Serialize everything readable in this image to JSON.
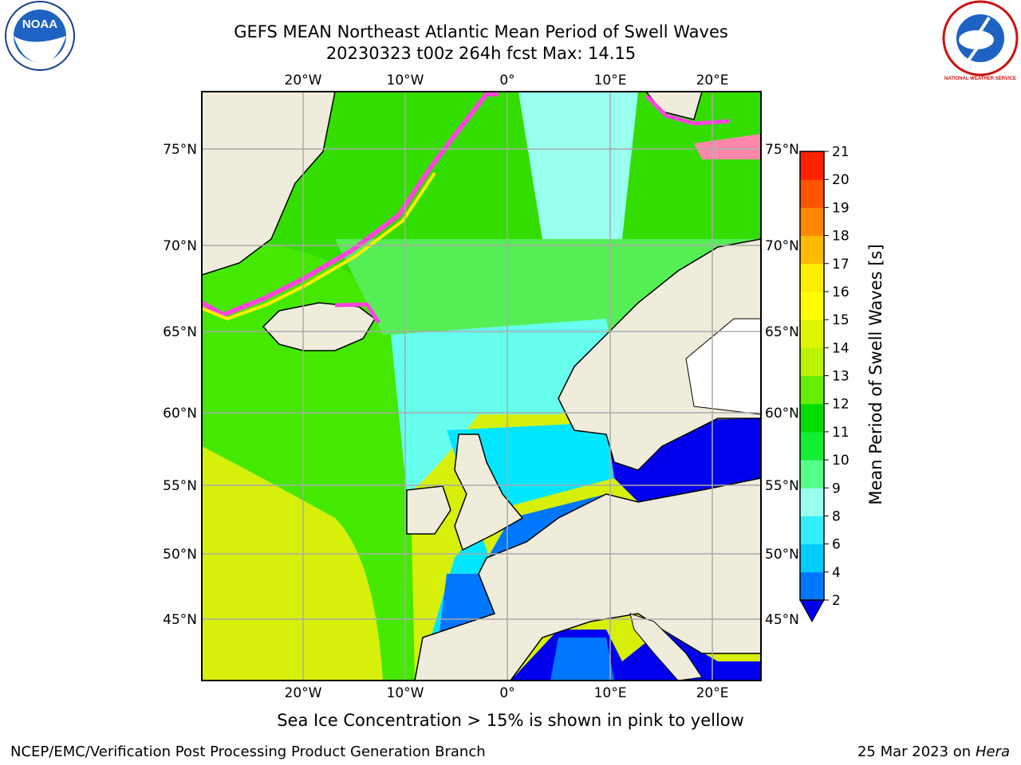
{
  "title": {
    "line1": "GEFS MEAN Northeast Atlantic Mean Period of Swell Waves",
    "line2": "20230323 t00z 264h fcst   Max: 14.15"
  },
  "map": {
    "lon_labels": [
      "20°W",
      "10°W",
      "0°",
      "10°E",
      "20°E"
    ],
    "lat_labels": [
      "75°N",
      "70°N",
      "65°N",
      "60°N",
      "55°N",
      "50°N",
      "45°N"
    ],
    "colors": {
      "land": "#efecdc",
      "ocean_long": "#d6f00a",
      "ocean_mid": "#33dd00",
      "ocean_short": "#00e6ff",
      "ice_pink": "#ff44dd",
      "ice_yellow": "#ffee00"
    }
  },
  "colorbar": {
    "title": "Mean Period of Swell Waves [s]",
    "ticks": [
      "2",
      "4",
      "6",
      "8",
      "9",
      "10",
      "11",
      "12",
      "13",
      "14",
      "15",
      "16",
      "17",
      "18",
      "19",
      "20",
      "21"
    ],
    "colors": [
      "#0000ee",
      "#0077ff",
      "#00ccff",
      "#33eeff",
      "#99ffee",
      "#55ff88",
      "#11ee33",
      "#00dd00",
      "#66ee00",
      "#bbf200",
      "#ddf500",
      "#ffff00",
      "#ffee00",
      "#ffbb00",
      "#ff8800",
      "#ff5500",
      "#ff2200",
      "#ff0000"
    ]
  },
  "footer": {
    "note": "Sea Ice Concentration > 15% is shown in pink to yellow",
    "credit": "NCEP/EMC/Verification Post Processing Product Generation Branch",
    "date": "25 Mar 2023 on",
    "machine": "Hera"
  },
  "logos": {
    "left": "NOAA",
    "right": "NATIONAL WEATHER SERVICE"
  }
}
